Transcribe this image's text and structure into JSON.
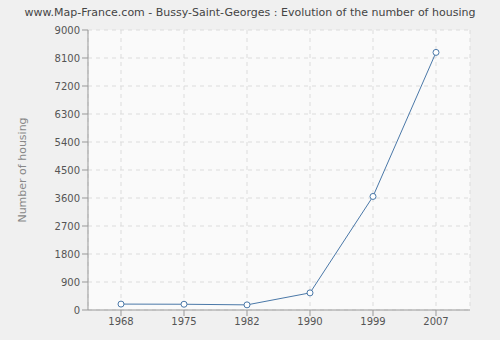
{
  "chart_data": {
    "type": "line",
    "title": "www.Map-France.com - Bussy-Saint-Georges : Evolution of the number of housing",
    "y_label": "Number of housing",
    "categories": [
      "1968",
      "1975",
      "1982",
      "1990",
      "1999",
      "2007"
    ],
    "values": [
      190,
      185,
      165,
      550,
      3650,
      8280
    ],
    "color": "#4a78a8",
    "marker": "circle",
    "ylim": [
      0,
      9000
    ],
    "yticks": [
      0,
      900,
      1800,
      2700,
      3600,
      4500,
      5400,
      6300,
      7200,
      8100,
      9000
    ],
    "grid": true
  }
}
